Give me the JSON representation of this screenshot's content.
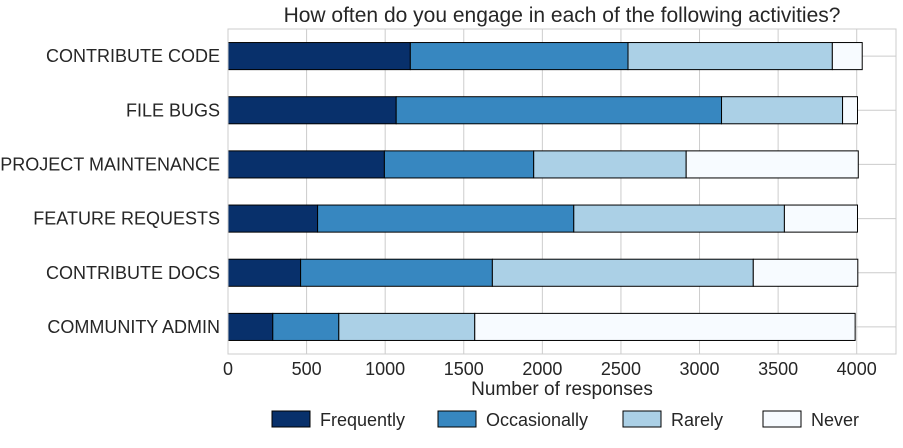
{
  "chart_data": {
    "type": "bar",
    "orientation": "horizontal",
    "stacked": true,
    "title": "How often do you engage in each of the following activities?",
    "xlabel": "Number of responses",
    "ylabel": "",
    "xlim": [
      0,
      4250
    ],
    "xticks": [
      0,
      500,
      1000,
      1500,
      2000,
      2500,
      3000,
      3500,
      4000
    ],
    "grid": true,
    "legend_position": "bottom",
    "categories": [
      "CONTRIBUTE CODE",
      "FILE BUGS",
      "PROJECT MAINTENANCE",
      "FEATURE REQUESTS",
      "CONTRIBUTE DOCS",
      "COMMUNITY ADMIN"
    ],
    "series": [
      {
        "name": "Frequently",
        "color": "#08306b",
        "values": [
          1160,
          1070,
          995,
          570,
          462,
          285
        ]
      },
      {
        "name": "Occasionally",
        "color": "#3787c0",
        "values": [
          1385,
          2070,
          950,
          1630,
          1220,
          420
        ]
      },
      {
        "name": "Rarely",
        "color": "#abd0e6",
        "values": [
          1300,
          770,
          970,
          1340,
          1660,
          865
        ]
      },
      {
        "name": "Never",
        "color": "#f7fbff",
        "values": [
          190,
          95,
          1095,
          465,
          665,
          2420
        ]
      }
    ]
  }
}
